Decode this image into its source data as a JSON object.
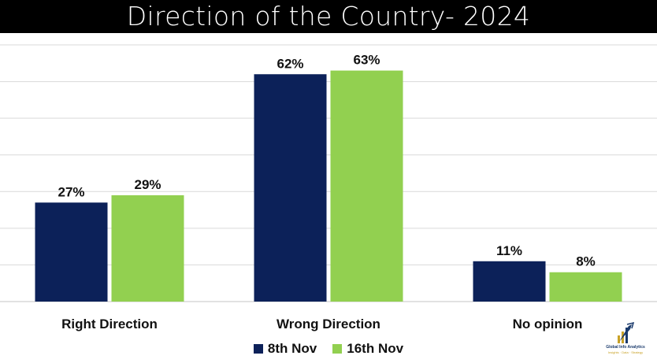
{
  "title": "Direction of the Country- 2024",
  "chart_data": {
    "type": "bar",
    "categories": [
      "Right Direction",
      "Wrong Direction",
      "No opinion"
    ],
    "series": [
      {
        "name": "8th Nov",
        "values": [
          27,
          62,
          11
        ],
        "labels": [
          "27%",
          "62%",
          "11%"
        ],
        "color": "#0c2159"
      },
      {
        "name": "16th Nov",
        "values": [
          29,
          63,
          8
        ],
        "labels": [
          "29%",
          "63%",
          "8%"
        ],
        "color": "#92d050"
      }
    ],
    "ylim": [
      0,
      70
    ],
    "grid": true,
    "gridline_step": 10,
    "legend_position": "bottom"
  },
  "logo": {
    "name": "Global Info Analytics",
    "tagline": "Insights · Data · Strategy"
  },
  "colors": {
    "title_bg": "#000000",
    "title_text": "#ffffff",
    "gridline": "#d9d9d9"
  }
}
